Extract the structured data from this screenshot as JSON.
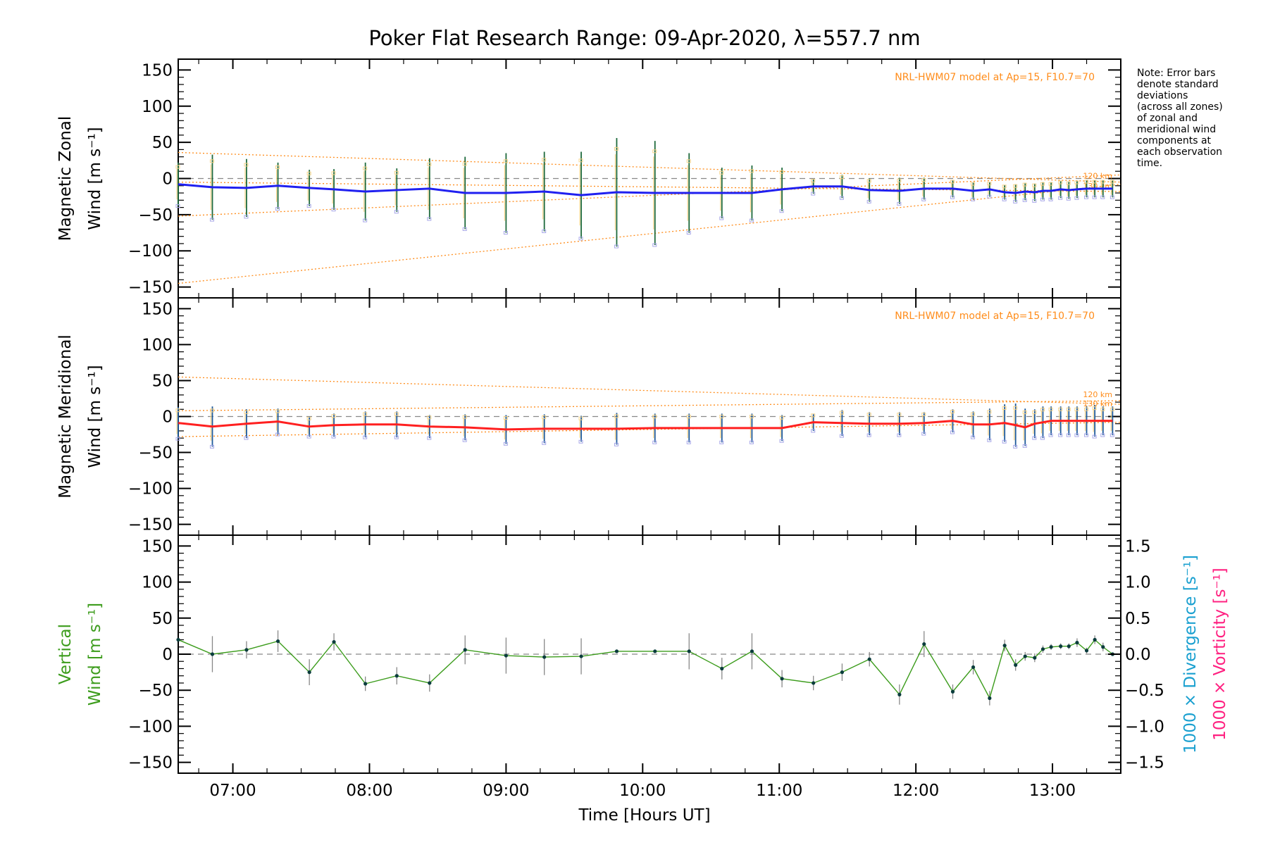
{
  "chart_data": {
    "type": "line",
    "title": "Poker Flat Research Range: 09-Apr-2020, λ=557.7 nm",
    "note_lines": [
      "Note: Error bars",
      "denote standard",
      "deviations",
      "(across all zones)",
      "of zonal and",
      "meridional wind",
      "components at",
      "each observation",
      "time."
    ],
    "xlabel": "Time [Hours UT]",
    "xlim": [
      6.6,
      13.5
    ],
    "xticks": [
      7,
      8,
      9,
      10,
      11,
      12,
      13
    ],
    "xtick_labels": [
      "07:00",
      "08:00",
      "09:00",
      "10:00",
      "11:00",
      "12:00",
      "13:00"
    ],
    "obs_times": [
      6.6,
      6.85,
      7.1,
      7.33,
      7.56,
      7.74,
      7.97,
      8.2,
      8.44,
      8.7,
      9.0,
      9.28,
      9.55,
      9.81,
      10.09,
      10.34,
      10.58,
      10.8,
      11.02,
      11.25,
      11.46,
      11.66,
      11.88,
      12.06,
      12.27,
      12.42,
      12.54,
      12.65,
      12.73,
      12.8,
      12.87,
      12.93,
      12.99,
      13.06,
      13.12,
      13.18,
      13.25,
      13.31,
      13.37,
      13.44
    ],
    "colors": {
      "zonal": "#2020f0",
      "meridional": "#ff2020",
      "vertical": "#3c9c1c",
      "model": "#ff8c1a",
      "divergence": "#1aa0d0",
      "vorticity": "#ff2080",
      "scatter": "#a8a8e8"
    },
    "panels": [
      {
        "ylabel_lines": [
          "Magnetic Zonal",
          "Wind [m s⁻¹]"
        ],
        "ylim": [
          -165,
          165
        ],
        "yticks": [
          -150,
          -100,
          -50,
          0,
          50,
          100,
          150
        ],
        "ytick_labels": [
          "−150",
          "−100",
          "−50",
          "0",
          "50",
          "100",
          "150"
        ],
        "model_label": "NRL-HWM07 model at Ap=15, F10.7=70",
        "km_labels": [
          "120 km",
          "130 km"
        ],
        "series": [
          {
            "values": [
              -8,
              -12,
              -13,
              -10,
              -13,
              -15,
              -18,
              -16,
              -14,
              -20,
              -20,
              -18,
              -23,
              -19,
              -20,
              -20,
              -20,
              -20,
              -15,
              -11,
              -11,
              -16,
              -17,
              -14,
              -14,
              -17,
              -15,
              -19,
              -20,
              -18,
              -19,
              -17,
              -17,
              -15,
              -16,
              -15,
              -14,
              -14,
              -14,
              -14
            ]
          }
        ],
        "errors": [
          30,
          45,
          40,
          32,
          25,
          28,
          40,
          30,
          42,
          50,
          55,
          55,
          60,
          75,
          72,
          55,
          35,
          38,
          30,
          10,
          16,
          16,
          18,
          15,
          12,
          12,
          10,
          10,
          12,
          12,
          12,
          12,
          12,
          12,
          12,
          12,
          12,
          12,
          12,
          12
        ],
        "model_lines": [
          {
            "x": [
              6.6,
              13.5
            ],
            "y": [
              -145,
              -8
            ]
          },
          {
            "x": [
              6.6,
              13.5
            ],
            "y": [
              -52,
              5
            ]
          },
          {
            "x": [
              6.6,
              13.5
            ],
            "y": [
              36,
              -5
            ]
          },
          {
            "x": [
              6.6,
              13.5
            ],
            "y": [
              -5,
              -18
            ]
          }
        ]
      },
      {
        "ylabel_lines": [
          "Magnetic Meridional",
          "Wind [m s⁻¹]"
        ],
        "ylim": [
          -165,
          165
        ],
        "yticks": [
          -150,
          -100,
          -50,
          0,
          50,
          100,
          150
        ],
        "ytick_labels": [
          "−150",
          "−100",
          "−50",
          "0",
          "50",
          "100",
          "150"
        ],
        "model_label": "NRL-HWM07 model at Ap=15, F10.7=70",
        "km_labels": [
          "120 km",
          "130 km"
        ],
        "series": [
          {
            "values": [
              -9,
              -14,
              -10,
              -7,
              -14,
              -12,
              -11,
              -11,
              -14,
              -15,
              -18,
              -17,
              -17,
              -17,
              -16,
              -16,
              -16,
              -16,
              -16,
              -8,
              -9,
              -10,
              -10,
              -9,
              -6,
              -11,
              -11,
              -9,
              -12,
              -15,
              -10,
              -8,
              -6,
              -6,
              -6,
              -6,
              -6,
              -6,
              -6,
              -6
            ]
          }
        ],
        "errors": [
          22,
          28,
          20,
          18,
          14,
          16,
          18,
          18,
          16,
          18,
          20,
          20,
          18,
          22,
          20,
          20,
          20,
          20,
          18,
          12,
          18,
          16,
          16,
          15,
          16,
          18,
          22,
          26,
          30,
          26,
          20,
          22,
          20,
          20,
          20,
          20,
          20,
          22,
          20,
          20
        ],
        "model_lines": [
          {
            "x": [
              6.6,
              13.5
            ],
            "y": [
              55,
              17
            ]
          },
          {
            "x": [
              6.6,
              13.5
            ],
            "y": [
              8,
              22
            ]
          },
          {
            "x": [
              6.6,
              13.5
            ],
            "y": [
              -28,
              -8
            ]
          }
        ]
      },
      {
        "ylabel_lines": [
          "Vertical",
          "Wind [m s⁻¹]"
        ],
        "ylim": [
          -165,
          165
        ],
        "yticks": [
          -150,
          -100,
          -50,
          0,
          50,
          100,
          150
        ],
        "ytick_labels": [
          "−150",
          "−100",
          "−50",
          "0",
          "50",
          "100",
          "150"
        ],
        "right_axis": {
          "label_divergence": "1000 × Divergence [s⁻¹]",
          "label_vorticity": "1000 × Vorticity [s⁻¹]",
          "ylim": [
            -1.65,
            1.65
          ],
          "yticks": [
            -1.5,
            -1.0,
            -0.5,
            0.0,
            0.5,
            1.0,
            1.5
          ],
          "ytick_labels": [
            "−1.5",
            "−1.0",
            "−0.5",
            "0.0",
            "0.5",
            "1.0",
            "1.5"
          ]
        },
        "series": [
          {
            "values": [
              20,
              0,
              6,
              18,
              -25,
              17,
              -41,
              -30,
              -40,
              6,
              -2,
              -4,
              -3,
              4,
              4,
              4,
              -20,
              4,
              -34,
              -40,
              -25,
              -7,
              -56,
              14,
              -52,
              -18,
              -61,
              12,
              -15,
              -3,
              -5,
              7,
              10,
              11,
              11,
              16,
              5,
              20,
              10,
              0
            ]
          }
        ],
        "errors": [
          0,
          25,
          12,
          15,
          18,
          12,
          10,
          12,
          12,
          20,
          25,
          25,
          25,
          0,
          0,
          25,
          15,
          25,
          12,
          10,
          12,
          10,
          14,
          18,
          10,
          10,
          10,
          8,
          8,
          6,
          6,
          5,
          4,
          4,
          4,
          6,
          4,
          6,
          6,
          0
        ]
      }
    ]
  }
}
